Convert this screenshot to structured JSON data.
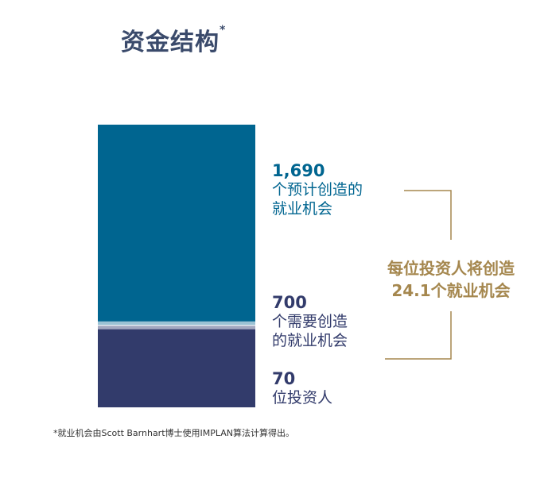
{
  "title": "资金结构",
  "title_mark": "*",
  "chart_data": {
    "type": "bar",
    "stacked": true,
    "segments": [
      {
        "name": "1,690",
        "value": 1690,
        "color": "#006590"
      },
      {
        "name": "700",
        "value": 700,
        "color": "#323b6b"
      }
    ],
    "labels": [
      {
        "number": "1,690",
        "line1": "个预计创造的",
        "line2": "就业机会",
        "color": "#006590"
      },
      {
        "number": "700",
        "line1": "个需要创造",
        "line2": "的就业机会",
        "color": "#323b6b"
      },
      {
        "number": "70",
        "line1": "位投资人",
        "line2": "",
        "color": "#323b6b"
      }
    ],
    "callout": {
      "line1": "每位投资人将创造",
      "line2": "24.1个就业机会",
      "color": "#a5874e"
    }
  },
  "footnote": "*就业机会由Scott Barnhart博士使用IMPLAN算法计算得出。"
}
